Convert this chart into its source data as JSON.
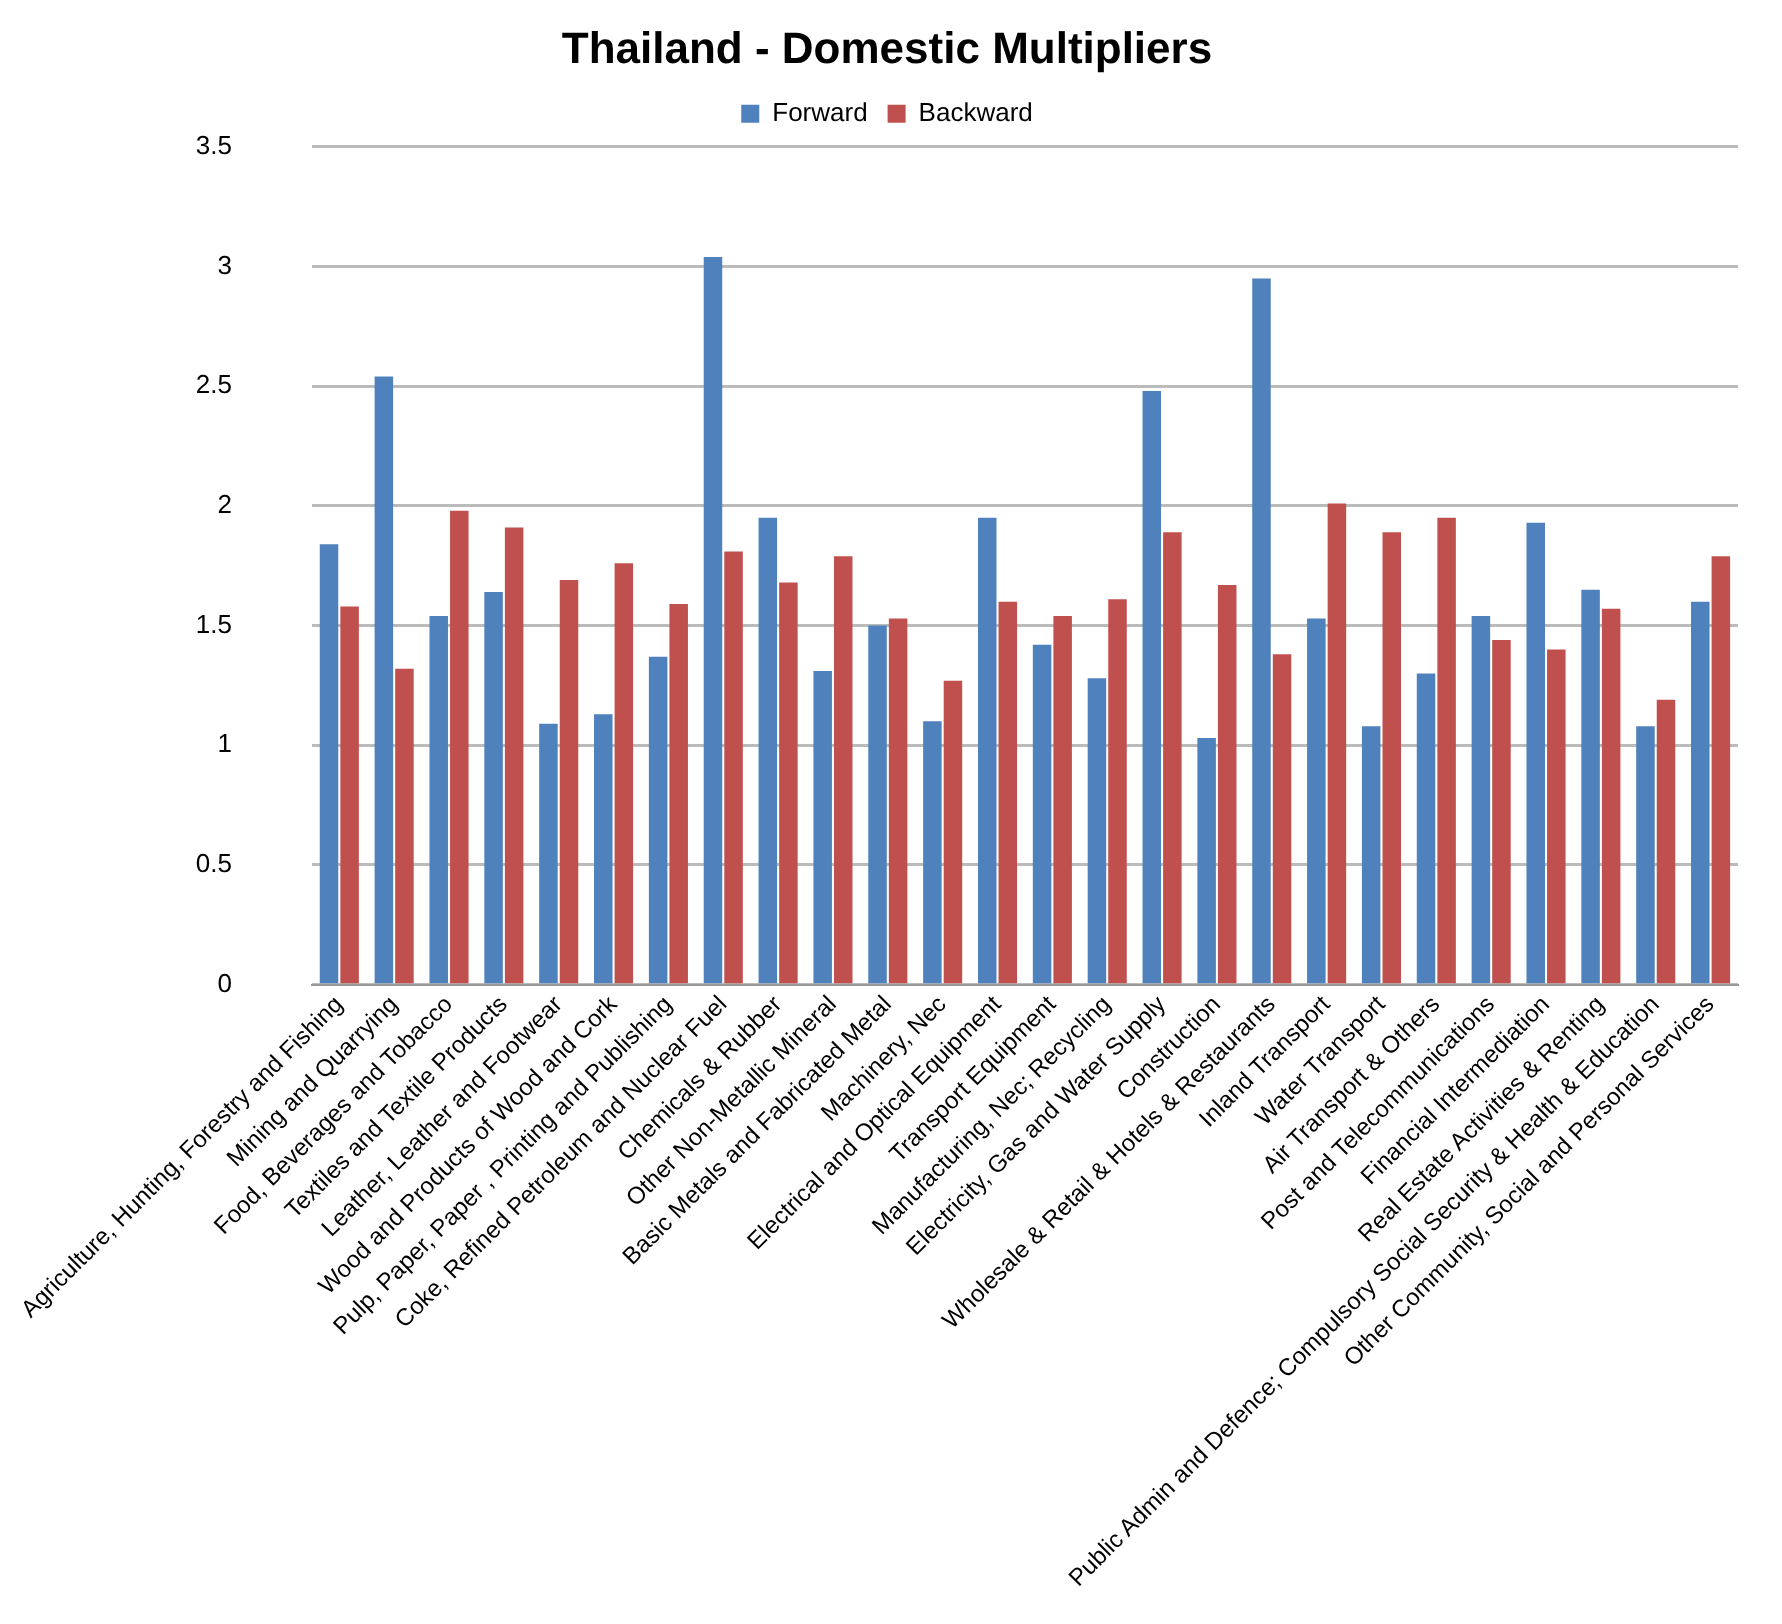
{
  "chart_data": {
    "type": "bar",
    "title": "Thailand - Domestic Multipliers",
    "categories": [
      "Agriculture, Hunting, Forestry and Fishing",
      "Mining and Quarrying",
      "Food, Beverages and Tobacco",
      "Textiles and Textile Products",
      "Leather, Leather and Footwear",
      "Wood and Products of Wood and Cork",
      "Pulp, Paper, Paper , Printing and Publishing",
      "Coke, Refined Petroleum and Nuclear Fuel",
      "Chemicals & Rubber",
      "Other Non-Metallic Mineral",
      "Basic Metals and Fabricated Metal",
      "Machinery, Nec",
      "Electrical and Optical Equipment",
      "Transport Equipment",
      "Manufacturing, Nec; Recycling",
      "Electricity, Gas and Water Supply",
      "Construction",
      "Wholesale & Retail & Hotels & Restaurants",
      "Inland Transport",
      "Water Transport",
      "Air Transport & Others",
      "Post and Telecommunications",
      "Financial Intermediation",
      "Real Estate Activities & Renting",
      "Public Admin and Defence; Compulsory Social Security & Health & Education",
      "Other Community, Social and Personal Services"
    ],
    "series": [
      {
        "name": "Forward",
        "color": "#4f81bd",
        "values": [
          1.84,
          2.54,
          1.54,
          1.64,
          1.09,
          1.13,
          1.37,
          3.04,
          1.95,
          1.31,
          1.5,
          1.1,
          1.95,
          1.42,
          1.28,
          2.48,
          1.03,
          2.95,
          1.53,
          1.08,
          1.3,
          1.54,
          1.93,
          1.65,
          1.08,
          1.6
        ]
      },
      {
        "name": "Backward",
        "color": "#c0504d",
        "values": [
          1.58,
          1.32,
          1.98,
          1.91,
          1.69,
          1.76,
          1.59,
          1.81,
          1.68,
          1.79,
          1.53,
          1.27,
          1.6,
          1.54,
          1.61,
          1.89,
          1.67,
          1.38,
          2.01,
          1.89,
          1.95,
          1.44,
          1.4,
          1.57,
          1.19,
          1.79
        ]
      }
    ],
    "ylim": [
      0,
      3.5
    ],
    "yticks": [
      0,
      0.5,
      1,
      1.5,
      2,
      2.5,
      3,
      3.5
    ],
    "grid": "y",
    "legend": "top"
  }
}
